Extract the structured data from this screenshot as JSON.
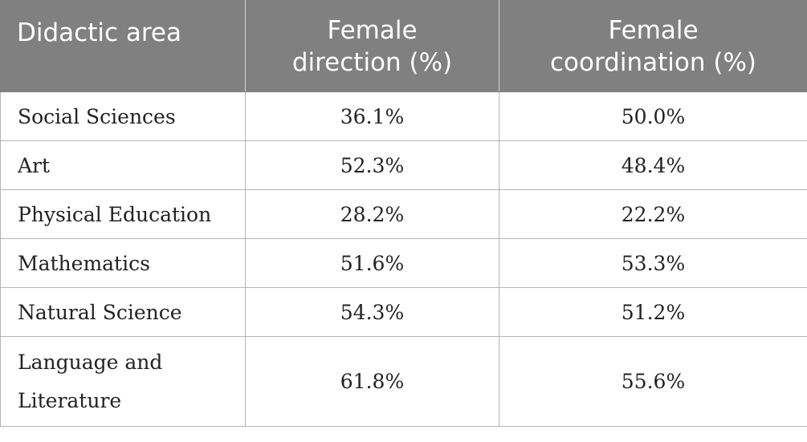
{
  "table": {
    "headers": {
      "col1": "Didactic area",
      "col2_line1": "Female",
      "col2_line2": "direction (%)",
      "col3_line1": "Female",
      "col3_line2": "coordination (%)"
    },
    "rows": [
      {
        "area": "Social Sciences",
        "direction": "36.1%",
        "coordination": "50.0%"
      },
      {
        "area": "Art",
        "direction": "52.3%",
        "coordination": "48.4%"
      },
      {
        "area": "Physical Education",
        "direction": "28.2%",
        "coordination": "22.2%"
      },
      {
        "area": "Mathematics",
        "direction": "51.6%",
        "coordination": "53.3%"
      },
      {
        "area": "Natural Science",
        "direction": "54.3%",
        "coordination": "51.2%"
      },
      {
        "area_line1": "Language and",
        "area_line2": "Literature",
        "direction": "61.8%",
        "coordination": "55.6%"
      }
    ]
  },
  "colors": {
    "header_bg": "#808080",
    "header_text": "#ffffff",
    "border": "#b5b5b5"
  }
}
